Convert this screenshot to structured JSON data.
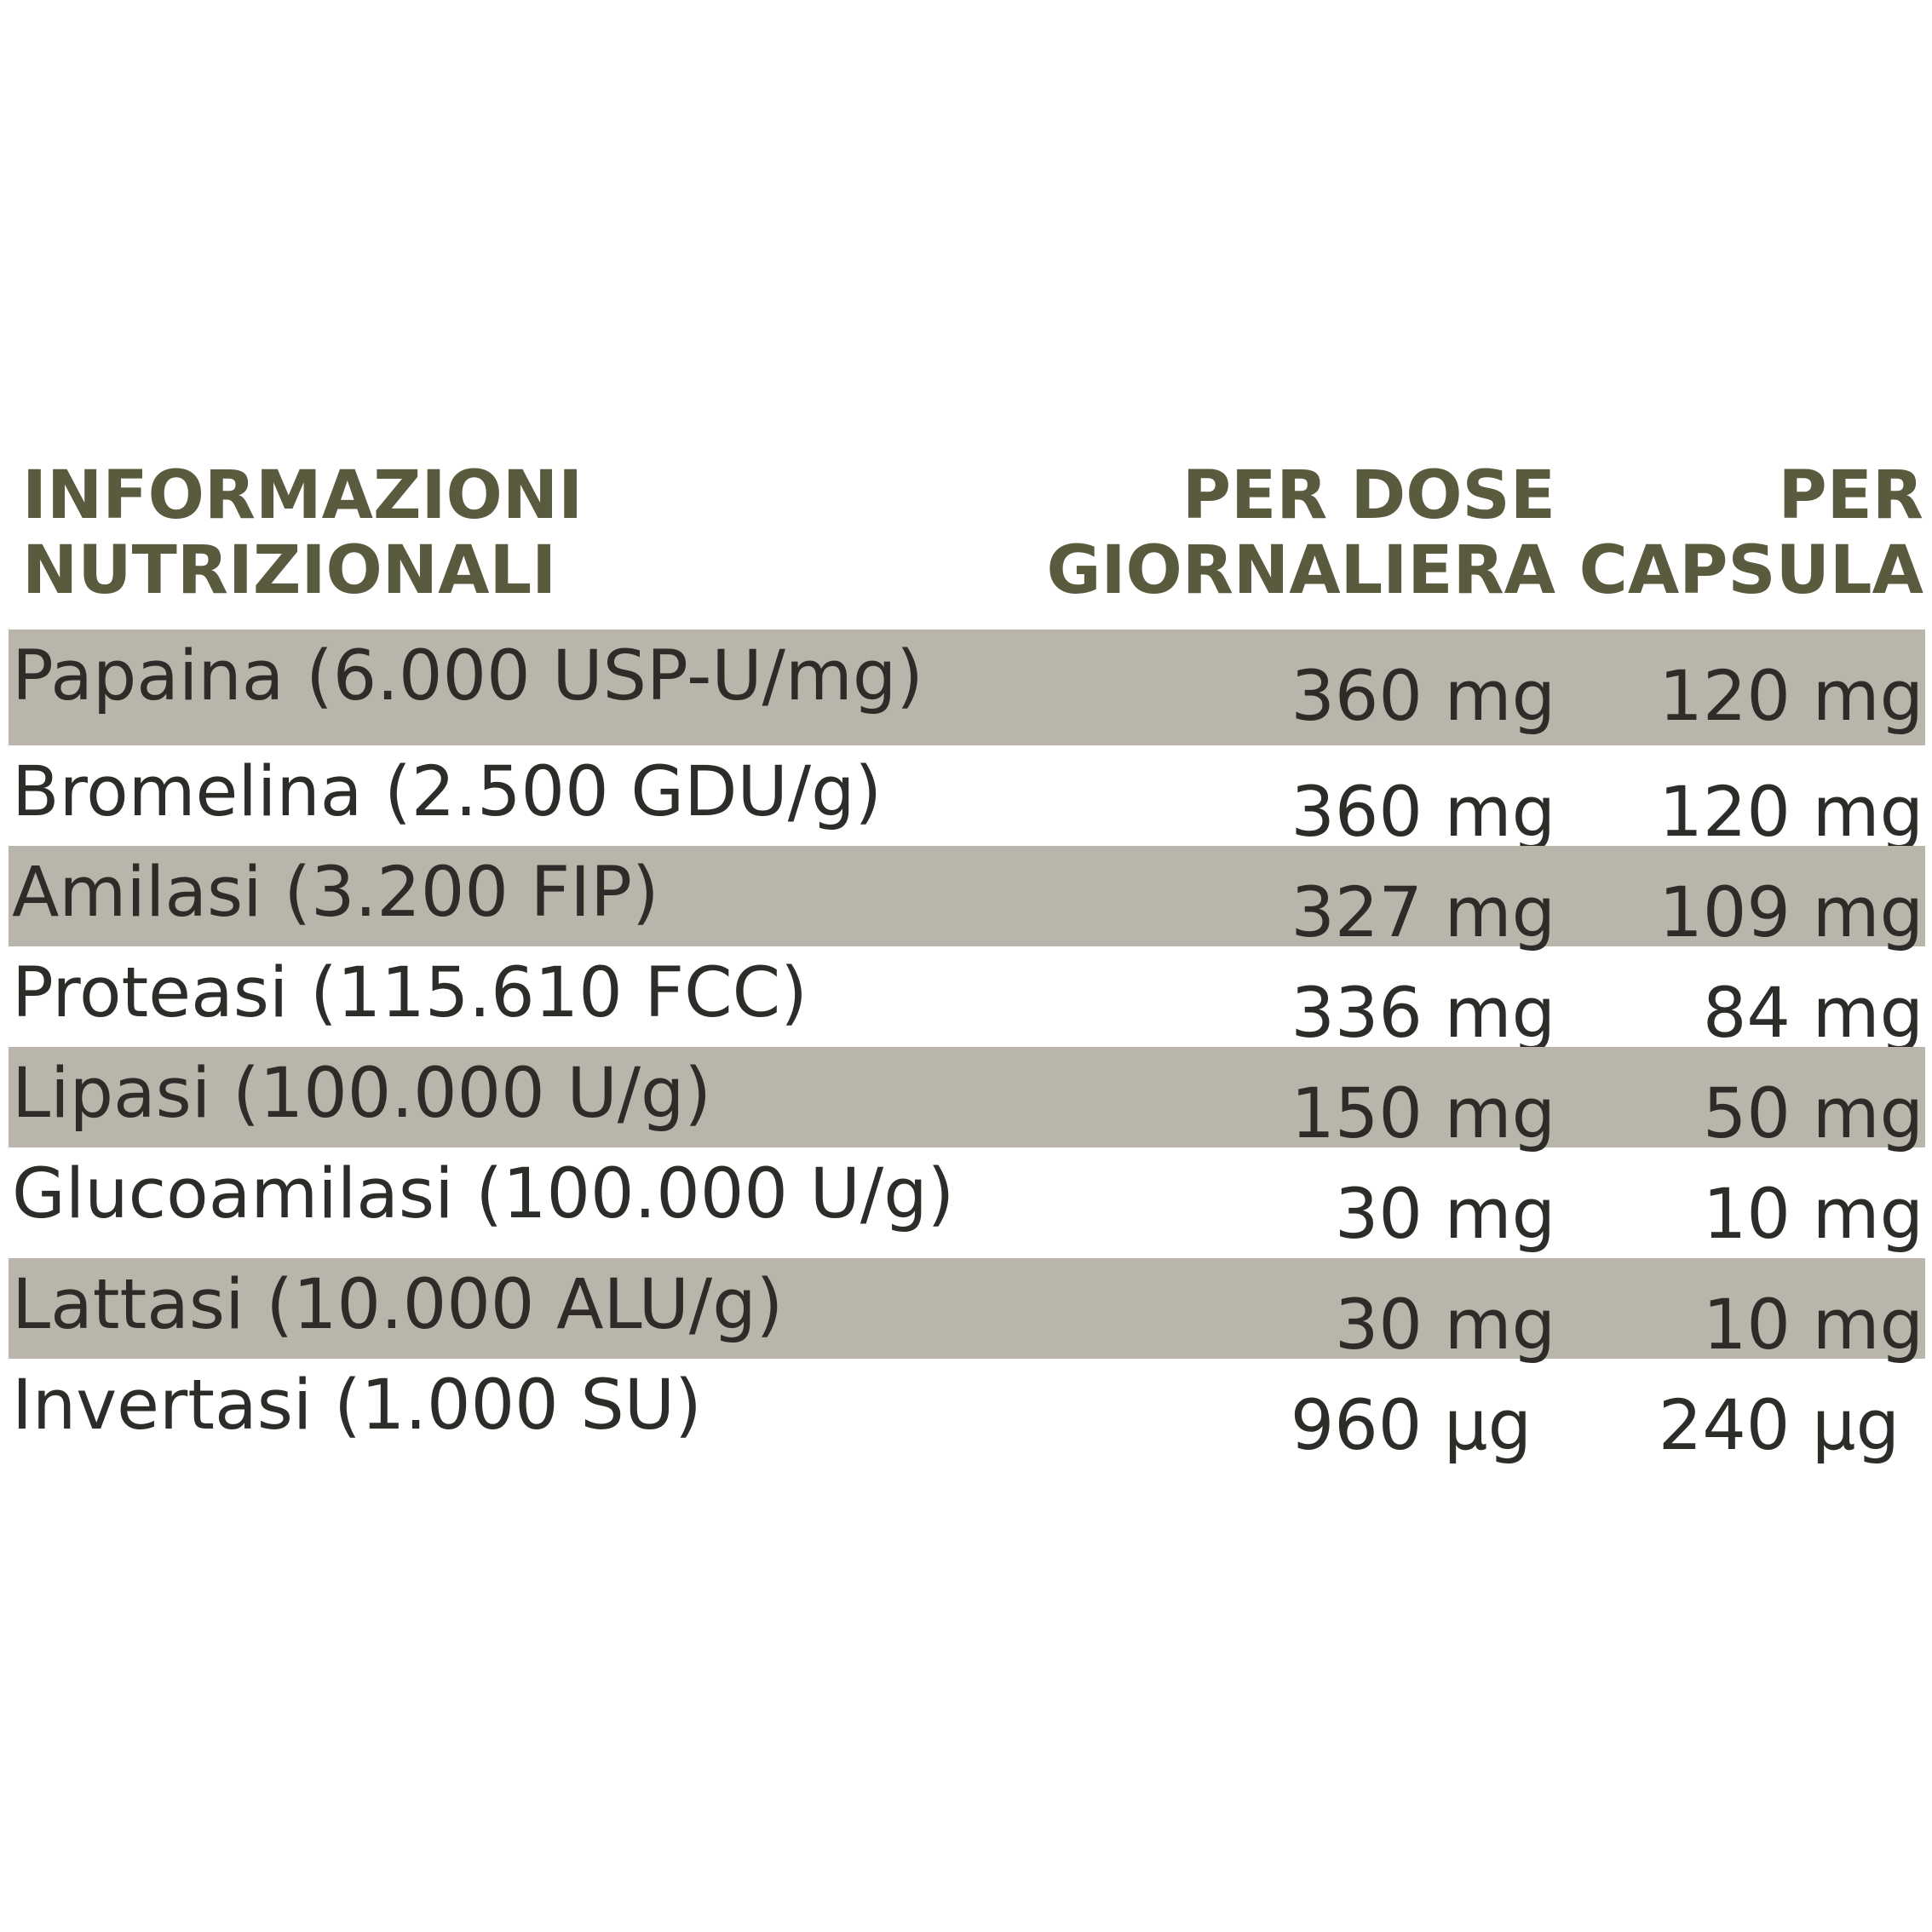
{
  "table": {
    "header": {
      "name": [
        "INFORMAZIONI",
        "NUTRIZIONALI"
      ],
      "per_dose": [
        "PER DOSE",
        "GIORNALIERA"
      ],
      "per_capsule": [
        "PER",
        "CAPSULA"
      ]
    },
    "rows": [
      {
        "name": "Papaina (6.000 USP-U/mg)",
        "per_dose": "360 mg",
        "per_capsule": "120 mg",
        "shaded": true
      },
      {
        "name": "Bromelina (2.500 GDU/g)",
        "per_dose": "360 mg",
        "per_capsule": "120 mg",
        "shaded": false
      },
      {
        "name": "Amilasi (3.200 FIP)",
        "per_dose": "327 mg",
        "per_capsule": "109 mg",
        "shaded": true
      },
      {
        "name": "Proteasi (115.610 FCC)",
        "per_dose": "336 mg",
        "per_capsule": "84 mg",
        "shaded": false
      },
      {
        "name": "Lipasi (100.000 U/g)",
        "per_dose": "150 mg",
        "per_capsule": "50 mg",
        "shaded": true
      },
      {
        "name": "Glucoamilasi (100.000 U/g)",
        "per_dose": "30 mg",
        "per_capsule": "10 mg",
        "shaded": false
      },
      {
        "name": "Lattasi (10.000 ALU/g)",
        "per_dose": "30 mg",
        "per_capsule": "10 mg",
        "shaded": true
      },
      {
        "name": "Invertasi (1.000 SU)",
        "per_dose": "960 µg",
        "per_capsule": "240 µg",
        "shaded": false
      }
    ],
    "colors": {
      "header_text": "#5a5b3e",
      "body_text": "#2d2c29",
      "row_shade": "#b9b5aa"
    }
  }
}
